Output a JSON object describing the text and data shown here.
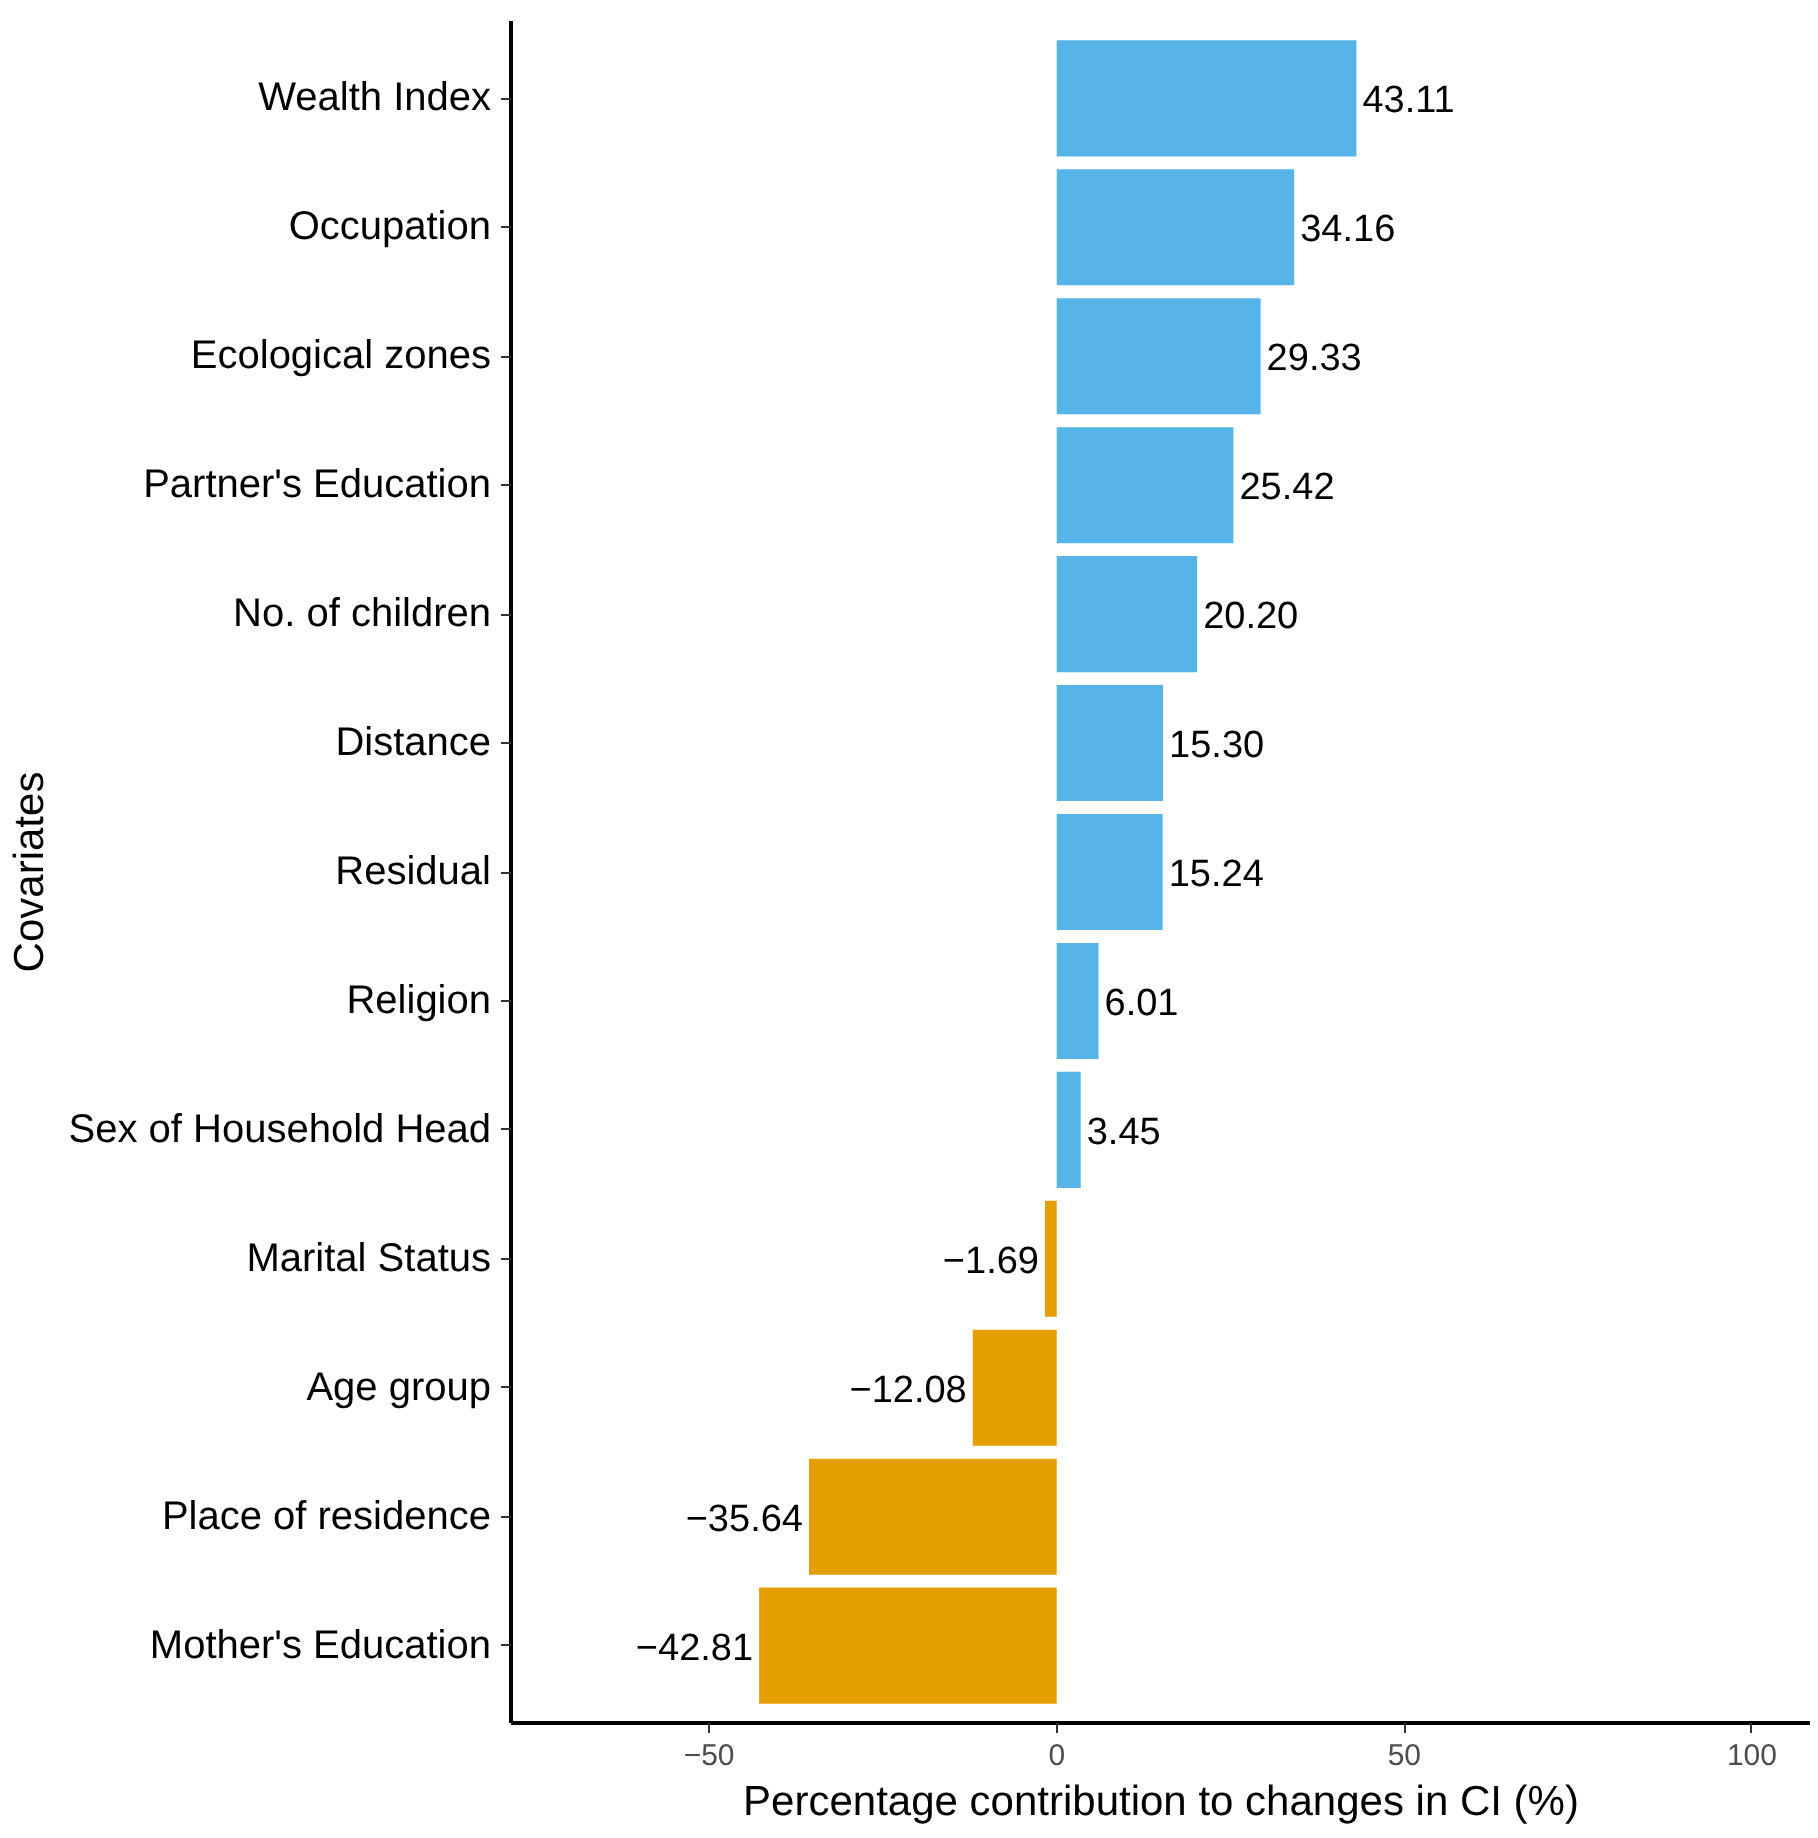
{
  "chart_data": {
    "type": "bar",
    "orientation": "horizontal",
    "xlabel": "Percentage contribution to changes in CI (%)",
    "ylabel": "Covariates",
    "categories": [
      "Wealth Index",
      "Occupation",
      "Ecological zones",
      "Partner's Education",
      "No. of children",
      "Distance",
      "Residual",
      "Religion",
      "Sex of Household Head",
      "Marital Status",
      "Age group",
      "Place of residence",
      "Mother's Education"
    ],
    "values": [
      43.11,
      34.16,
      29.33,
      25.42,
      20.2,
      15.3,
      15.24,
      6.01,
      3.45,
      -1.69,
      -12.08,
      -35.64,
      -42.81
    ],
    "colors": [
      "#56b4e9",
      "#56b4e9",
      "#56b4e9",
      "#56b4e9",
      "#56b4e9",
      "#56b4e9",
      "#56b4e9",
      "#56b4e9",
      "#56b4e9",
      "#e69f00",
      "#e69f00",
      "#e69f00",
      "#e69f00"
    ],
    "value_labels": [
      "43.11",
      "34.16",
      "29.33",
      "25.42",
      "20.20",
      "15.30",
      "15.24",
      "6.01",
      "3.45",
      "−1.69",
      "−12.08",
      "−35.64",
      "−42.81"
    ],
    "xlim": [
      -78.5,
      108.5
    ],
    "xticks": [
      {
        "value": -50,
        "label": "−50"
      },
      0,
      50,
      100
    ],
    "grid": false
  }
}
